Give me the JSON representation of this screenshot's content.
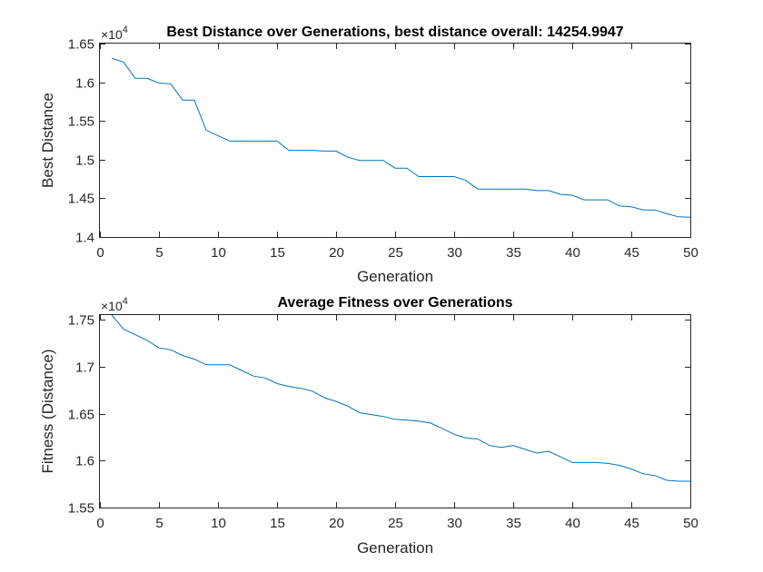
{
  "chart_data": [
    {
      "type": "line",
      "title": "Best Distance over Generations, best distance overall: 14254.9947",
      "xlabel": "Generation",
      "ylabel": "Best Distance",
      "exponent_label": "×10",
      "exponent": "4",
      "xlim": [
        0,
        50
      ],
      "ylim": [
        14000,
        16500
      ],
      "xticks": [
        0,
        5,
        10,
        15,
        20,
        25,
        30,
        35,
        40,
        45,
        50
      ],
      "yticks": [
        14000,
        14500,
        15000,
        15500,
        16000,
        16500
      ],
      "ytick_labels": [
        "1.4",
        "1.45",
        "1.5",
        "1.55",
        "1.6",
        "1.65"
      ],
      "grid": false,
      "color": "#0072BD",
      "x": [
        1,
        2,
        3,
        4,
        5,
        6,
        7,
        8,
        9,
        10,
        11,
        12,
        13,
        14,
        15,
        16,
        17,
        18,
        19,
        20,
        21,
        22,
        23,
        24,
        25,
        26,
        27,
        28,
        29,
        30,
        31,
        32,
        33,
        34,
        35,
        36,
        37,
        38,
        39,
        40,
        41,
        42,
        43,
        44,
        45,
        46,
        47,
        48,
        49,
        50
      ],
      "values": [
        16310,
        16260,
        16050,
        16050,
        15990,
        15980,
        15770,
        15770,
        15380,
        15310,
        15240,
        15240,
        15240,
        15240,
        15240,
        15120,
        15120,
        15120,
        15110,
        15110,
        15030,
        14990,
        14990,
        14990,
        14890,
        14890,
        14780,
        14780,
        14780,
        14780,
        14730,
        14620,
        14620,
        14620,
        14620,
        14620,
        14600,
        14600,
        14550,
        14540,
        14480,
        14480,
        14480,
        14400,
        14390,
        14350,
        14350,
        14300,
        14260,
        14255
      ]
    },
    {
      "type": "line",
      "title": "Average Fitness over Generations",
      "xlabel": "Generation",
      "ylabel": "Fitness (Distance)",
      "exponent_label": "×10",
      "exponent": "4",
      "xlim": [
        0,
        50
      ],
      "ylim": [
        15500,
        17550
      ],
      "xticks": [
        0,
        5,
        10,
        15,
        20,
        25,
        30,
        35,
        40,
        45,
        50
      ],
      "yticks": [
        15500,
        16000,
        16500,
        17000,
        17500
      ],
      "ytick_labels": [
        "1.55",
        "1.6",
        "1.65",
        "1.7",
        "1.75"
      ],
      "grid": false,
      "color": "#0072BD",
      "x": [
        1,
        2,
        3,
        4,
        5,
        6,
        7,
        8,
        9,
        10,
        11,
        12,
        13,
        14,
        15,
        16,
        17,
        18,
        19,
        20,
        21,
        22,
        23,
        24,
        25,
        26,
        27,
        28,
        29,
        30,
        31,
        32,
        33,
        34,
        35,
        36,
        37,
        38,
        39,
        40,
        41,
        42,
        43,
        44,
        45,
        46,
        47,
        48,
        49,
        50
      ],
      "values": [
        17550,
        17400,
        17340,
        17280,
        17200,
        17180,
        17120,
        17080,
        17020,
        17020,
        17020,
        16960,
        16900,
        16880,
        16820,
        16790,
        16770,
        16740,
        16670,
        16630,
        16580,
        16510,
        16490,
        16470,
        16440,
        16430,
        16420,
        16400,
        16340,
        16280,
        16240,
        16230,
        16160,
        16140,
        16160,
        16120,
        16080,
        16100,
        16040,
        15980,
        15980,
        15980,
        15970,
        15950,
        15910,
        15860,
        15840,
        15790,
        15780,
        15780
      ]
    }
  ]
}
